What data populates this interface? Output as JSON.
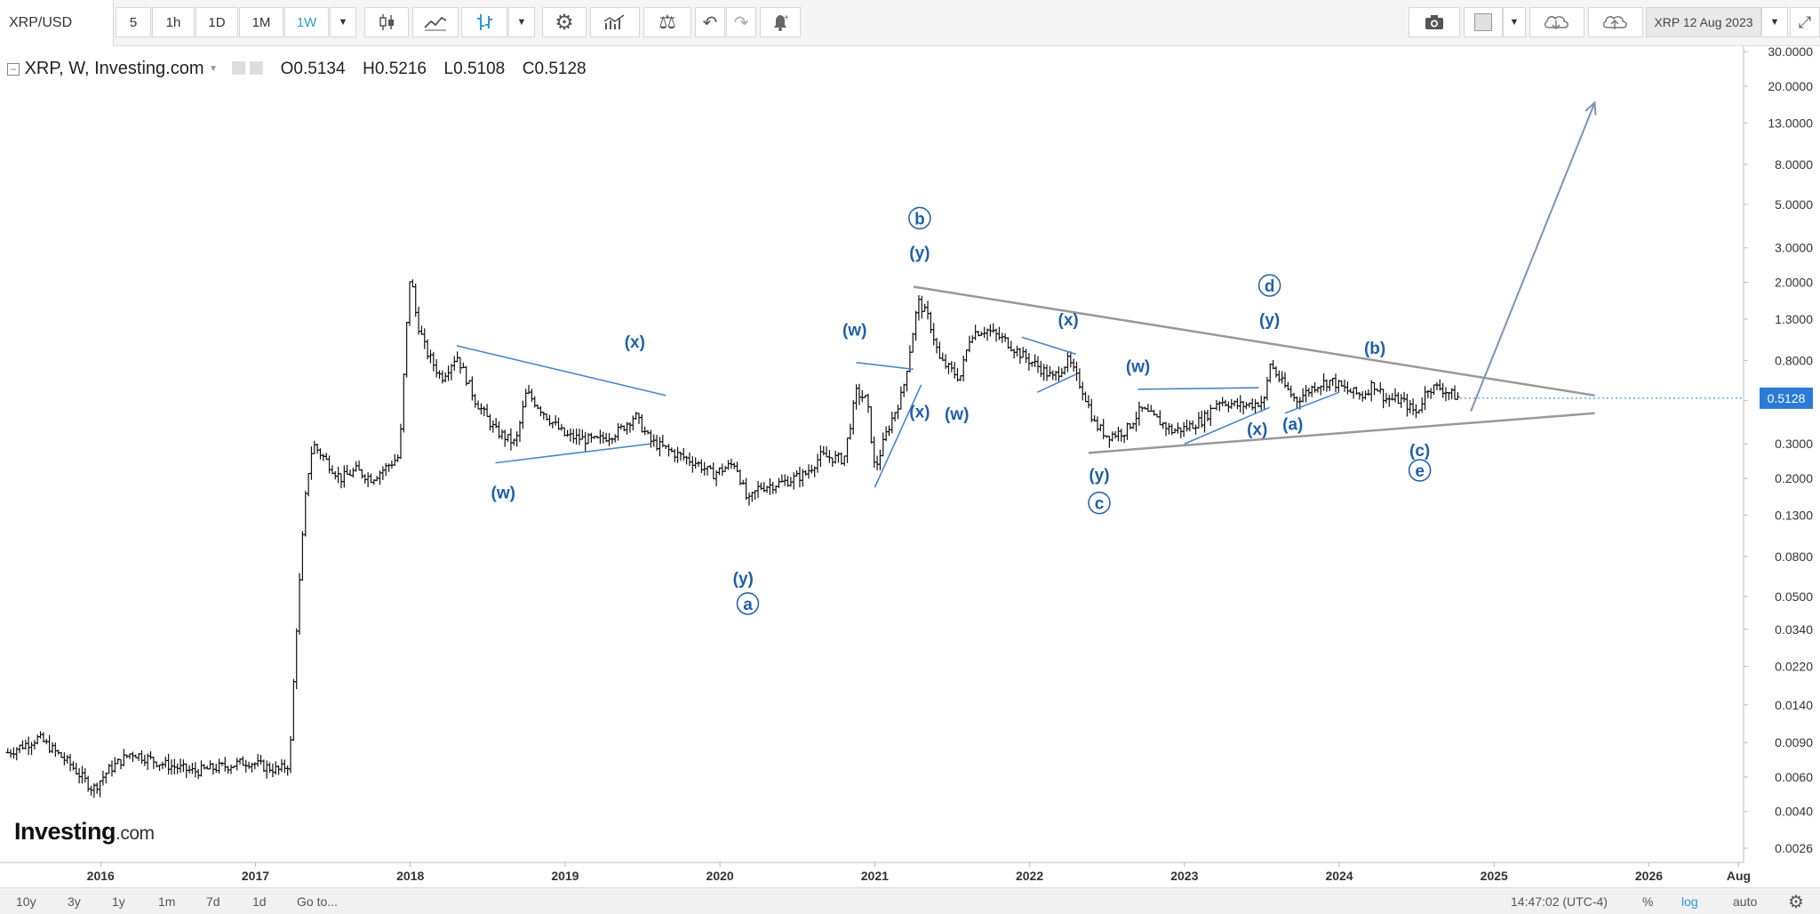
{
  "toolbar": {
    "symbol": "XRP/USD",
    "intervals": [
      "5",
      "1h",
      "1D",
      "1M",
      "1W"
    ],
    "active_interval": "1W",
    "compare_label": "XRP 12 Aug 2023"
  },
  "legend": {
    "title": "XRP, W, Investing.com",
    "open": "O0.5134",
    "high": "H0.5216",
    "low": "L0.5108",
    "close": "C0.5128"
  },
  "price_tag": "0.5128",
  "watermark": {
    "brand": "Investing",
    "suffix": ".com"
  },
  "bottom_bar": {
    "ranges": [
      "10y",
      "3y",
      "1y",
      "1m",
      "7d",
      "1d"
    ],
    "goto": "Go to...",
    "time": "14:47:02 (UTC-4)",
    "percent": "%",
    "log": "log",
    "auto": "auto"
  },
  "colors": {
    "accent": "#2a9bd6",
    "wave": "#1f5fa8",
    "trendline": "#4a86c8",
    "triangle": "#999999",
    "price_tag": "#2a7bd6",
    "candles": "#111111"
  },
  "chart_data": {
    "type": "candlestick",
    "title": "XRP, W, Investing.com",
    "xlabel": "",
    "ylabel": "",
    "y_scale": "log",
    "ylim": [
      0.0022,
      32
    ],
    "y_ticks": [
      "30.0000",
      "20.0000",
      "13.0000",
      "8.0000",
      "5.0000",
      "3.0000",
      "2.0000",
      "1.3000",
      "0.8000",
      "0.5000",
      "0.3000",
      "0.2000",
      "0.1300",
      "0.0800",
      "0.0500",
      "0.0340",
      "0.0220",
      "0.0140",
      "0.0090",
      "0.0060",
      "0.0040",
      "0.0026"
    ],
    "x_ticks": [
      "2016",
      "2017",
      "2018",
      "2019",
      "2020",
      "2021",
      "2022",
      "2023",
      "2024",
      "2025",
      "2026",
      "Aug"
    ],
    "xlim": [
      2015.35,
      2026.6
    ],
    "series": [
      {
        "points": [
          [
            2015.4,
            0.008
          ],
          [
            2015.6,
            0.0095
          ],
          [
            2015.8,
            0.007
          ],
          [
            2015.95,
            0.0052
          ],
          [
            2016.05,
            0.0065
          ],
          [
            2016.2,
            0.008
          ],
          [
            2016.4,
            0.007
          ],
          [
            2016.6,
            0.0064
          ],
          [
            2016.8,
            0.0068
          ],
          [
            2016.95,
            0.0072
          ],
          [
            2017.05,
            0.0068
          ],
          [
            2017.15,
            0.0065
          ],
          [
            2017.22,
            0.007
          ],
          [
            2017.26,
            0.03
          ],
          [
            2017.3,
            0.09
          ],
          [
            2017.33,
            0.19
          ],
          [
            2017.37,
            0.3
          ],
          [
            2017.45,
            0.25
          ],
          [
            2017.55,
            0.2
          ],
          [
            2017.65,
            0.22
          ],
          [
            2017.75,
            0.2
          ],
          [
            2017.85,
            0.23
          ],
          [
            2017.93,
            0.26
          ],
          [
            2017.97,
            1.0
          ],
          [
            2018.0,
            2.3
          ],
          [
            2018.04,
            1.3
          ],
          [
            2018.1,
            0.9
          ],
          [
            2018.2,
            0.65
          ],
          [
            2018.3,
            0.85
          ],
          [
            2018.42,
            0.5
          ],
          [
            2018.55,
            0.35
          ],
          [
            2018.68,
            0.3
          ],
          [
            2018.75,
            0.55
          ],
          [
            2018.9,
            0.4
          ],
          [
            2019.0,
            0.33
          ],
          [
            2019.2,
            0.31
          ],
          [
            2019.35,
            0.35
          ],
          [
            2019.45,
            0.42
          ],
          [
            2019.55,
            0.31
          ],
          [
            2019.7,
            0.27
          ],
          [
            2019.85,
            0.24
          ],
          [
            2019.95,
            0.21
          ],
          [
            2020.1,
            0.24
          ],
          [
            2020.18,
            0.15
          ],
          [
            2020.25,
            0.18
          ],
          [
            2020.4,
            0.19
          ],
          [
            2020.55,
            0.21
          ],
          [
            2020.65,
            0.26
          ],
          [
            2020.8,
            0.25
          ],
          [
            2020.88,
            0.55
          ],
          [
            2020.95,
            0.5
          ],
          [
            2021.0,
            0.22
          ],
          [
            2021.08,
            0.35
          ],
          [
            2021.18,
            0.55
          ],
          [
            2021.28,
            1.6
          ],
          [
            2021.35,
            1.3
          ],
          [
            2021.42,
            0.8
          ],
          [
            2021.55,
            0.65
          ],
          [
            2021.62,
            1.1
          ],
          [
            2021.72,
            1.15
          ],
          [
            2021.85,
            1.0
          ],
          [
            2021.95,
            0.85
          ],
          [
            2022.05,
            0.75
          ],
          [
            2022.15,
            0.65
          ],
          [
            2022.25,
            0.8
          ],
          [
            2022.35,
            0.55
          ],
          [
            2022.42,
            0.38
          ],
          [
            2022.5,
            0.33
          ],
          [
            2022.62,
            0.35
          ],
          [
            2022.72,
            0.45
          ],
          [
            2022.82,
            0.4
          ],
          [
            2022.92,
            0.35
          ],
          [
            2023.0,
            0.36
          ],
          [
            2023.12,
            0.4
          ],
          [
            2023.22,
            0.5
          ],
          [
            2023.35,
            0.47
          ],
          [
            2023.45,
            0.48
          ],
          [
            2023.52,
            0.5
          ],
          [
            2023.55,
            0.78
          ],
          [
            2023.62,
            0.63
          ],
          [
            2023.72,
            0.5
          ],
          [
            2023.85,
            0.6
          ],
          [
            2023.95,
            0.63
          ],
          [
            2024.05,
            0.56
          ],
          [
            2024.15,
            0.53
          ],
          [
            2024.22,
            0.61
          ],
          [
            2024.3,
            0.51
          ],
          [
            2024.4,
            0.5
          ],
          [
            2024.5,
            0.43
          ],
          [
            2024.57,
            0.58
          ],
          [
            2024.65,
            0.58
          ],
          [
            2024.72,
            0.54
          ],
          [
            2024.78,
            0.5128
          ]
        ]
      }
    ],
    "triangle": {
      "upper": [
        [
          2021.25,
          1.9
        ],
        [
          2025.65,
          0.53
        ]
      ],
      "lower": [
        [
          2022.38,
          0.27
        ],
        [
          2025.65,
          0.43
        ]
      ]
    },
    "projection": [
      [
        2024.85,
        0.44
      ],
      [
        2025.65,
        16.5
      ]
    ],
    "wave_labels": [
      {
        "text": "(x)",
        "x": 2019.45,
        "y": 1.0
      },
      {
        "text": "(w)",
        "x": 2018.6,
        "y": 0.17
      },
      {
        "text": "(y)",
        "x": 2020.15,
        "y": 0.062
      },
      {
        "text": "a",
        "x": 2020.18,
        "y": 0.046,
        "circled": true
      },
      {
        "text": "(w)",
        "x": 2020.87,
        "y": 1.15
      },
      {
        "text": "(x)",
        "x": 2021.29,
        "y": 0.44
      },
      {
        "text": "(w)",
        "x": 2021.53,
        "y": 0.43
      },
      {
        "text": "(y)",
        "x": 2021.29,
        "y": 2.85
      },
      {
        "text": "b",
        "x": 2021.29,
        "y": 4.25,
        "circled": true
      },
      {
        "text": "(x)",
        "x": 2022.25,
        "y": 1.3
      },
      {
        "text": "(w)",
        "x": 2022.7,
        "y": 0.75
      },
      {
        "text": "(y)",
        "x": 2022.45,
        "y": 0.21
      },
      {
        "text": "c",
        "x": 2022.45,
        "y": 0.15,
        "circled": true
      },
      {
        "text": "(x)",
        "x": 2023.47,
        "y": 0.36
      },
      {
        "text": "(a)",
        "x": 2023.7,
        "y": 0.38
      },
      {
        "text": "(y)",
        "x": 2023.55,
        "y": 1.3
      },
      {
        "text": "d",
        "x": 2023.55,
        "y": 1.93,
        "circled": true
      },
      {
        "text": "(b)",
        "x": 2024.23,
        "y": 0.93
      },
      {
        "text": "(c)",
        "x": 2024.52,
        "y": 0.28
      },
      {
        "text": "e",
        "x": 2024.52,
        "y": 0.22,
        "circled": true
      }
    ]
  }
}
